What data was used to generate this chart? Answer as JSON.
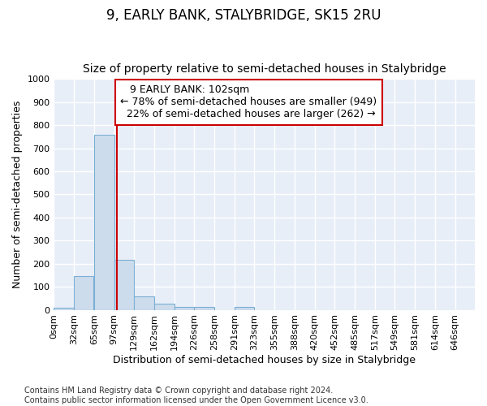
{
  "title": "9, EARLY BANK, STALYBRIDGE, SK15 2RU",
  "subtitle": "Size of property relative to semi-detached houses in Stalybridge",
  "xlabel": "Distribution of semi-detached houses by size in Stalybridge",
  "ylabel": "Number of semi-detached properties",
  "footnote1": "Contains HM Land Registry data © Crown copyright and database right 2024.",
  "footnote2": "Contains public sector information licensed under the Open Government Licence v3.0.",
  "bar_left_edges": [
    0,
    32,
    65,
    97,
    129,
    162,
    194,
    226,
    258,
    291,
    323,
    355,
    388,
    420,
    452,
    485,
    517,
    549,
    581,
    614
  ],
  "bar_heights": [
    8,
    145,
    760,
    218,
    57,
    25,
    14,
    12,
    0,
    12,
    0,
    0,
    0,
    0,
    0,
    0,
    0,
    0,
    0,
    0
  ],
  "bin_width": 32,
  "bar_color": "#cddcec",
  "bar_edgecolor": "#7bafd4",
  "tick_labels": [
    "0sqm",
    "32sqm",
    "65sqm",
    "97sqm",
    "129sqm",
    "162sqm",
    "194sqm",
    "226sqm",
    "258sqm",
    "291sqm",
    "323sqm",
    "355sqm",
    "388sqm",
    "420sqm",
    "452sqm",
    "485sqm",
    "517sqm",
    "549sqm",
    "581sqm",
    "614sqm",
    "646sqm"
  ],
  "property_size": 102,
  "property_size_label": "9 EARLY BANK: 102sqm",
  "pct_smaller": 78,
  "n_smaller": 949,
  "pct_larger": 22,
  "n_larger": 262,
  "vline_color": "#cc0000",
  "annotation_box_edgecolor": "#cc0000",
  "ylim": [
    0,
    1000
  ],
  "yticks": [
    0,
    100,
    200,
    300,
    400,
    500,
    600,
    700,
    800,
    900,
    1000
  ],
  "bg_color": "#e8eef8",
  "grid_color": "#ffffff",
  "fig_bg_color": "#ffffff",
  "title_fontsize": 12,
  "subtitle_fontsize": 10,
  "axis_label_fontsize": 9,
  "tick_fontsize": 8,
  "annotation_fontsize": 9,
  "footnote_fontsize": 7
}
